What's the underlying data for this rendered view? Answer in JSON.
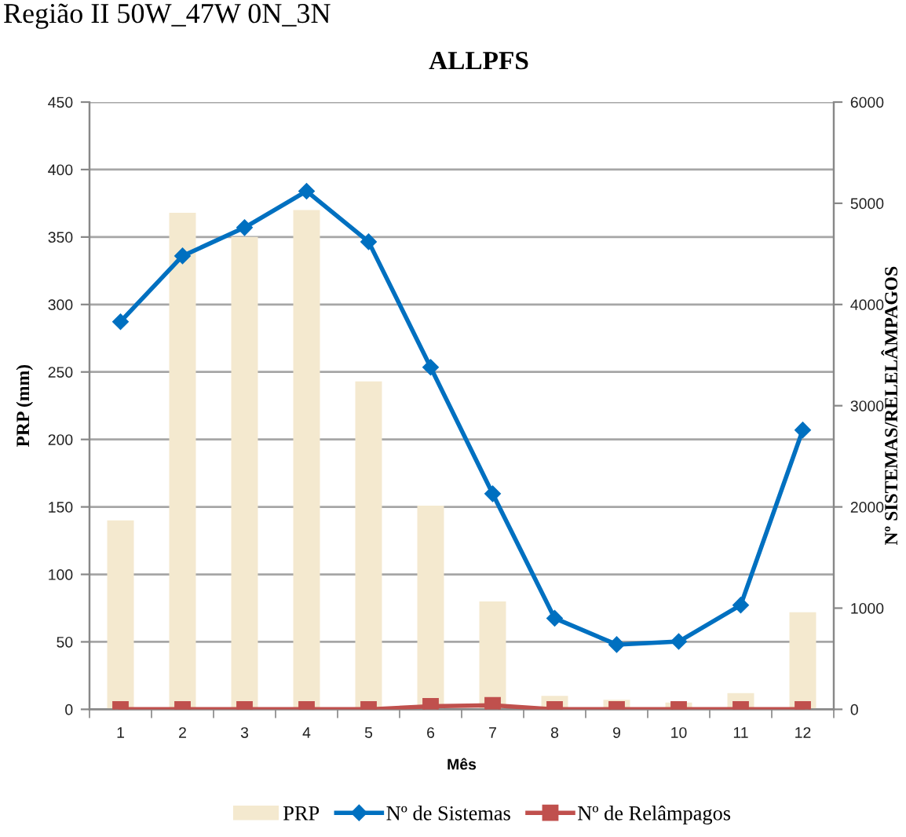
{
  "chart_data": {
    "type": "bar",
    "title": "ALLPFS",
    "annotations": [
      "Região II 50W_47W 0N_3N"
    ],
    "xlabel": "Mês",
    "ylabel": "PRP (mm)",
    "y2label": "Nº SISTEMAS/RELELÂMPAGOS",
    "categories": [
      "1",
      "2",
      "3",
      "4",
      "5",
      "6",
      "7",
      "8",
      "9",
      "10",
      "11",
      "12"
    ],
    "series": [
      {
        "name": "PRP",
        "color": "#f4e9cf",
        "values": [
          140,
          368,
          350,
          370,
          243,
          151,
          80,
          10,
          7,
          5,
          12,
          72
        ]
      },
      {
        "name": "Nº de Sistemas",
        "type": "line",
        "axis": "y2",
        "color": "#0070c0",
        "marker": "diamond",
        "values": [
          3830,
          4480,
          4760,
          5120,
          4620,
          3380,
          2130,
          900,
          640,
          670,
          1030,
          2760
        ]
      },
      {
        "name": "Nº de Relâmpagos",
        "type": "line",
        "axis": "y2",
        "color": "#c0504d",
        "marker": "square",
        "values": [
          0,
          0,
          0,
          0,
          0,
          30,
          40,
          0,
          0,
          0,
          0,
          0
        ]
      }
    ],
    "ylim": [
      0,
      450
    ],
    "yticks": [
      0,
      50,
      100,
      150,
      200,
      250,
      300,
      350,
      400,
      450
    ],
    "y2lim": [
      0,
      6000
    ],
    "y2ticks": [
      0,
      1000,
      2000,
      3000,
      4000,
      5000,
      6000
    ],
    "grid": "y",
    "legend": "bottom",
    "line_style": "solid"
  }
}
